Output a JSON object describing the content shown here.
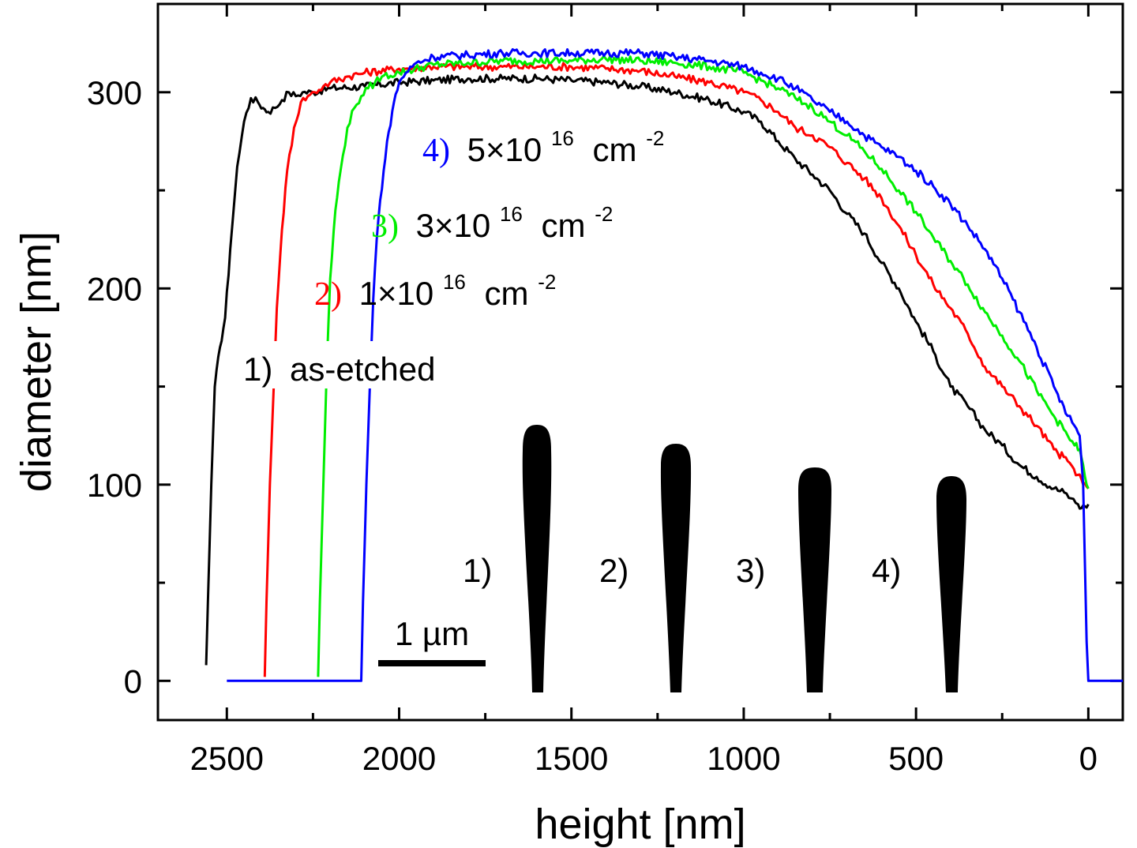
{
  "chart_data": {
    "type": "line",
    "title": "",
    "xlabel": "height [nm]",
    "ylabel": "diameter [nm]",
    "xlim": [
      2700,
      -100
    ],
    "ylim": [
      -20,
      345
    ],
    "x_reversed": true,
    "x_ticks": [
      2500,
      2000,
      1500,
      1000,
      500,
      0
    ],
    "y_ticks": [
      0,
      100,
      200,
      300
    ],
    "grid": false,
    "series": [
      {
        "name": "as-etched",
        "number": "1)",
        "dose": "",
        "color": "#000000",
        "x": [
          2560,
          2555,
          2545,
          2535,
          2520,
          2505,
          2490,
          2470,
          2450,
          2430,
          2410,
          2395,
          2380,
          2360,
          2340,
          2320,
          2300,
          2280,
          2250,
          2200,
          2100,
          2000,
          1900,
          1800,
          1700,
          1600,
          1500,
          1400,
          1300,
          1200,
          1100,
          1000,
          950,
          900,
          850,
          800,
          750,
          700,
          650,
          600,
          550,
          500,
          450,
          400,
          350,
          300,
          250,
          200,
          150,
          100,
          70,
          50,
          30,
          20,
          10,
          0
        ],
        "y": [
          8,
          40,
          100,
          150,
          170,
          185,
          220,
          262,
          285,
          297,
          295,
          292,
          290,
          292,
          296,
          300,
          298,
          300,
          300,
          302,
          303,
          305,
          306,
          307,
          307,
          307,
          306,
          305,
          303,
          300,
          296,
          290,
          285,
          275,
          266,
          258,
          250,
          238,
          228,
          213,
          200,
          183,
          168,
          150,
          140,
          128,
          120,
          110,
          104,
          98,
          96,
          93,
          90,
          88,
          89,
          90
        ]
      },
      {
        "name": "1×10",
        "number": "2)",
        "dose": "16",
        "color": "#ff0000",
        "x": [
          2390,
          2385,
          2375,
          2365,
          2355,
          2340,
          2325,
          2305,
          2285,
          2265,
          2245,
          2220,
          2200,
          2150,
          2100,
          2000,
          1900,
          1800,
          1700,
          1600,
          1500,
          1400,
          1300,
          1200,
          1100,
          1000,
          950,
          900,
          850,
          800,
          750,
          700,
          650,
          600,
          550,
          500,
          450,
          400,
          350,
          300,
          250,
          200,
          150,
          100,
          60,
          30,
          15,
          5,
          0
        ],
        "y": [
          2,
          40,
          100,
          145,
          190,
          230,
          260,
          282,
          295,
          298,
          300,
          303,
          305,
          308,
          310,
          312,
          313,
          313,
          313,
          313,
          313,
          312,
          311,
          308,
          305,
          300,
          296,
          290,
          282,
          278,
          272,
          264,
          256,
          246,
          232,
          217,
          202,
          190,
          177,
          160,
          150,
          140,
          130,
          118,
          112,
          105,
          100,
          99,
          98
        ]
      },
      {
        "name": "3×10",
        "number": "3)",
        "dose": "16",
        "color": "#00ee00",
        "x": [
          2235,
          2230,
          2220,
          2210,
          2200,
          2185,
          2170,
          2150,
          2130,
          2110,
          2090,
          2070,
          2050,
          2000,
          1900,
          1800,
          1700,
          1600,
          1500,
          1400,
          1300,
          1200,
          1100,
          1000,
          950,
          900,
          850,
          800,
          750,
          700,
          650,
          600,
          550,
          500,
          450,
          400,
          350,
          300,
          250,
          200,
          150,
          100,
          60,
          40,
          25,
          15,
          5,
          0
        ],
        "y": [
          2,
          40,
          100,
          160,
          205,
          240,
          260,
          282,
          292,
          298,
          302,
          305,
          308,
          310,
          314,
          315,
          316,
          316,
          316,
          317,
          316,
          315,
          313,
          310,
          306,
          302,
          297,
          292,
          285,
          278,
          270,
          261,
          250,
          239,
          226,
          214,
          202,
          188,
          176,
          163,
          148,
          135,
          125,
          120,
          118,
          110,
          100,
          98
        ]
      },
      {
        "name": "5×10",
        "number": "4)",
        "dose": "16",
        "color": "#0000ff",
        "x": [
          2500,
          2110,
          2105,
          2095,
          2085,
          2075,
          2065,
          2055,
          2045,
          2030,
          2015,
          2000,
          1980,
          1950,
          1900,
          1800,
          1700,
          1600,
          1500,
          1400,
          1300,
          1200,
          1100,
          1000,
          950,
          900,
          850,
          800,
          750,
          700,
          650,
          600,
          550,
          500,
          450,
          400,
          350,
          300,
          250,
          200,
          150,
          100,
          60,
          40,
          25,
          15,
          10,
          5,
          0,
          -100
        ],
        "y": [
          0,
          0,
          40,
          100,
          150,
          195,
          225,
          245,
          260,
          280,
          295,
          305,
          310,
          315,
          318,
          319,
          320,
          320,
          320,
          320,
          320,
          318,
          316,
          313,
          310,
          307,
          302,
          296,
          290,
          285,
          278,
          272,
          267,
          260,
          252,
          243,
          232,
          220,
          205,
          188,
          170,
          150,
          135,
          130,
          125,
          100,
          60,
          20,
          0,
          0
        ]
      }
    ],
    "annotations": {
      "unit": "cm",
      "unit_exponent": "-2",
      "scale_bar": "1 µm",
      "inset_labels": [
        "1)",
        "2)",
        "3)",
        "4)"
      ]
    }
  }
}
